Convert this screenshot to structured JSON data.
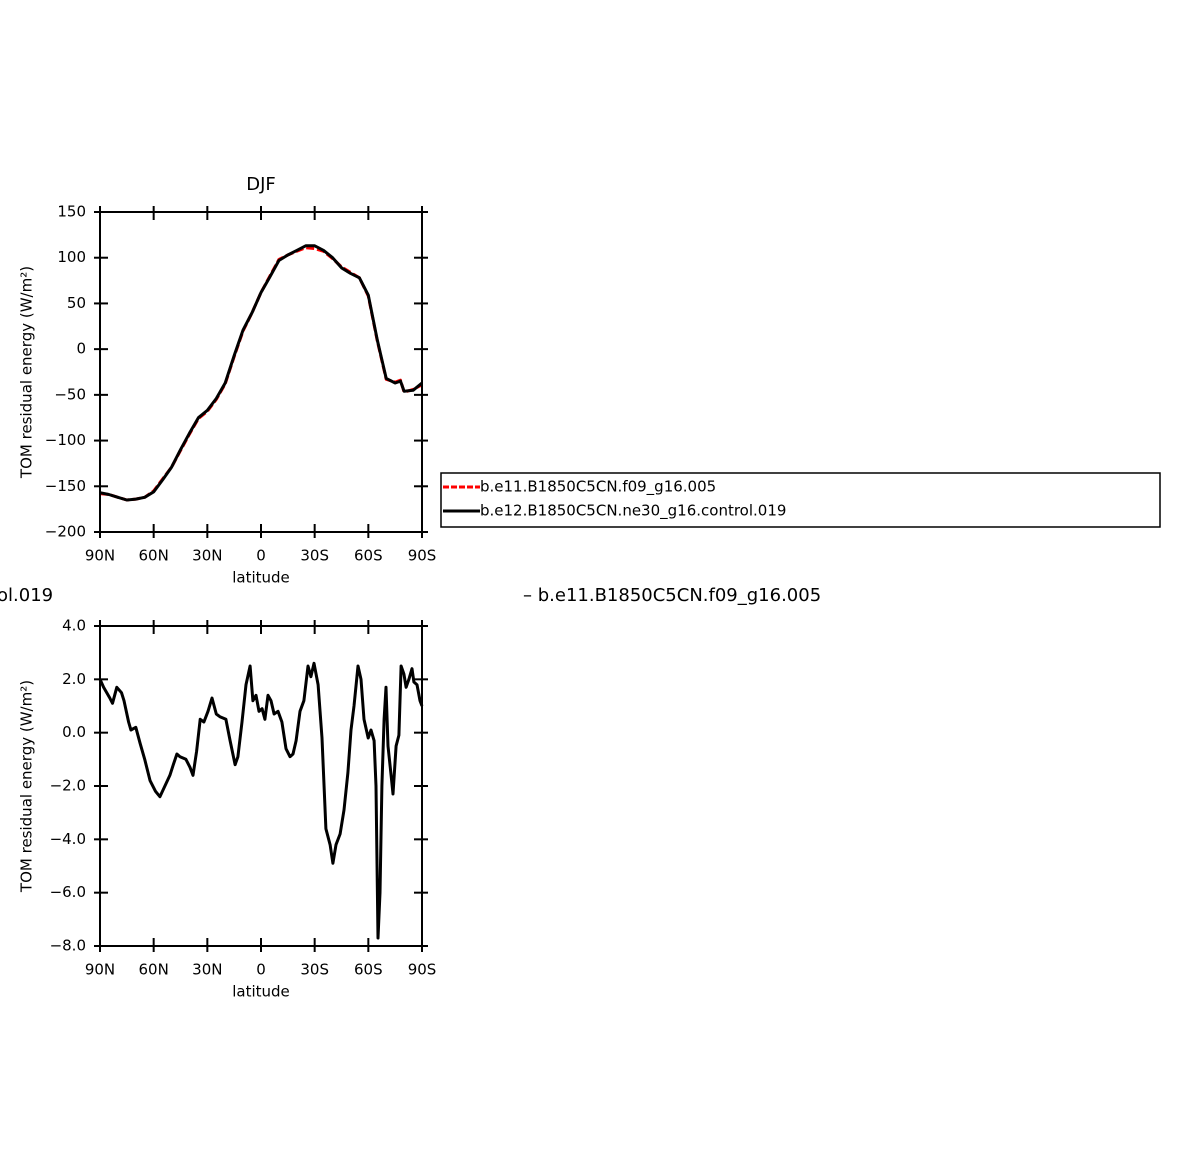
{
  "chart_data": [
    {
      "type": "line",
      "title": "DJF",
      "xlabel": "latitude",
      "ylabel": "TOM residual energy (W/m²)",
      "x": [
        90,
        85,
        80,
        75,
        70,
        65,
        60,
        55,
        50,
        45,
        40,
        35,
        30,
        25,
        20,
        15,
        10,
        5,
        0,
        -5,
        -10,
        -15,
        -20,
        -25,
        -30,
        -35,
        -40,
        -45,
        -50,
        -55,
        -60,
        -65,
        -70,
        -75,
        -78,
        -80,
        -85,
        -90
      ],
      "series": [
        {
          "name": "b.e11.B1850C5CN.f09_g16.005",
          "color": "#ff0000",
          "dash": true,
          "values": [
            -158,
            -159,
            -162,
            -165,
            -164,
            -162,
            -155,
            -142,
            -129,
            -111,
            -93,
            -76,
            -68,
            -55,
            -38,
            -8,
            20,
            40,
            62,
            80,
            98,
            103,
            107,
            111,
            110,
            107,
            99,
            90,
            84,
            78,
            58,
            9,
            -33,
            -36,
            -34,
            -47,
            -44,
            -39
          ]
        },
        {
          "name": "b.e12.B1850C5CN.ne30_g16.control.019",
          "color": "#000000",
          "dash": false,
          "values": [
            -157,
            -159,
            -162,
            -165,
            -164,
            -162,
            -156,
            -143,
            -129,
            -110,
            -92,
            -75,
            -67,
            -54,
            -37,
            -7,
            21,
            40,
            62,
            79,
            97,
            103,
            108,
            113,
            113,
            108,
            100,
            89,
            83,
            78,
            59,
            10,
            -32,
            -37,
            -35,
            -46,
            -45,
            -37
          ]
        }
      ],
      "xlim": [
        90,
        -90
      ],
      "xticks": [
        {
          "value": 90,
          "label": "90N"
        },
        {
          "value": 60,
          "label": "60N"
        },
        {
          "value": 30,
          "label": "30N"
        },
        0,
        {
          "value": -30,
          "label": "30S"
        },
        {
          "value": -60,
          "label": "60S"
        },
        {
          "value": -90,
          "label": "90S"
        }
      ],
      "ylim": [
        -200,
        150
      ],
      "yticks": [
        150,
        100,
        50,
        0,
        {
          "value": -50,
          "label": "−50"
        },
        {
          "value": -100,
          "label": "−100"
        },
        {
          "value": -150,
          "label": "−150"
        },
        {
          "value": -200,
          "label": "−200"
        }
      ],
      "legend": "right"
    },
    {
      "type": "line",
      "title_fragments": [
        "ol.019",
        "– b.e11.B1850C5CN.f09_g16.005"
      ],
      "xlabel": "latitude",
      "ylabel": "TOM residual energy (W/m²)",
      "x": [
        90,
        88,
        84.5,
        83,
        80.6,
        78,
        76.6,
        74,
        72.7,
        70,
        67.6,
        65,
        62,
        59,
        56.5,
        53.7,
        50.9,
        49,
        47,
        45.3,
        42,
        39.7,
        38,
        36,
        34,
        31.9,
        29.6,
        27.4,
        25,
        23,
        19.6,
        17.3,
        14.5,
        12.9,
        10.6,
        8.4,
        6.1,
        4.5,
        2.8,
        1.1,
        -0.6,
        -2.2,
        -3.9,
        -5.6,
        -7.3,
        -9.5,
        -11.7,
        -14,
        -16.2,
        -17.9,
        -19.6,
        -21.8,
        -24,
        -26.3,
        -27.9,
        -29.6,
        -31.9,
        -34.1,
        -36.3,
        -38.6,
        -40.2,
        -41.9,
        -44.2,
        -46.4,
        -48.6,
        -50.3,
        -52,
        -54.2,
        -55.9,
        -57.6,
        -59.9,
        -61.5,
        -63.2,
        -64.3,
        -65.4,
        -66.5,
        -67.6,
        -68.8,
        -69.9,
        -71,
        -72.7,
        -73.8,
        -75.5,
        -77.1,
        -78.3,
        -79.9,
        -81.1,
        -82.7,
        -84.4,
        -85.5,
        -87.2,
        -88.9,
        -90
      ],
      "series": [
        {
          "color": "#000000",
          "dash": false,
          "values": [
            2.0,
            1.7,
            1.3,
            1.1,
            1.7,
            1.5,
            1.2,
            0.4,
            0.1,
            0.2,
            -0.4,
            -1.0,
            -1.8,
            -2.2,
            -2.4,
            -2.0,
            -1.6,
            -1.2,
            -0.8,
            -0.9,
            -1.0,
            -1.3,
            -1.6,
            -0.7,
            0.5,
            0.4,
            0.8,
            1.3,
            0.7,
            0.6,
            0.5,
            -0.3,
            -1.2,
            -0.9,
            0.4,
            1.8,
            2.5,
            1.2,
            1.4,
            0.8,
            0.9,
            0.5,
            1.4,
            1.2,
            0.7,
            0.8,
            0.4,
            -0.6,
            -0.9,
            -0.8,
            -0.3,
            0.8,
            1.2,
            2.5,
            2.1,
            2.6,
            1.8,
            -0.2,
            -3.6,
            -4.2,
            -4.9,
            -4.2,
            -3.8,
            -2.9,
            -1.5,
            0.1,
            1.0,
            2.5,
            2.0,
            0.5,
            -0.2,
            0.1,
            -0.3,
            -2.0,
            -7.7,
            -6.0,
            -2.0,
            0.5,
            1.7,
            -0.5,
            -1.6,
            -2.3,
            -0.5,
            -0.1,
            2.5,
            2.2,
            1.7,
            2.0,
            2.4,
            1.9,
            1.8,
            1.2,
            1.0
          ]
        }
      ],
      "xlim": [
        90,
        -90
      ],
      "xticks": [
        {
          "value": 90,
          "label": "90N"
        },
        {
          "value": 60,
          "label": "60N"
        },
        {
          "value": 30,
          "label": "30N"
        },
        0,
        {
          "value": -30,
          "label": "30S"
        },
        {
          "value": -60,
          "label": "60S"
        },
        {
          "value": -90,
          "label": "90S"
        }
      ],
      "ylim": [
        -8,
        4
      ],
      "yticks": [
        {
          "value": 4,
          "label": "4.0"
        },
        {
          "value": 2,
          "label": "2.0"
        },
        {
          "value": 0,
          "label": "0.0"
        },
        {
          "value": -2,
          "label": "−2.0"
        },
        {
          "value": -4,
          "label": "−4.0"
        },
        {
          "value": -6,
          "label": "−6.0"
        },
        {
          "value": -8,
          "label": "−8.0"
        }
      ]
    }
  ]
}
